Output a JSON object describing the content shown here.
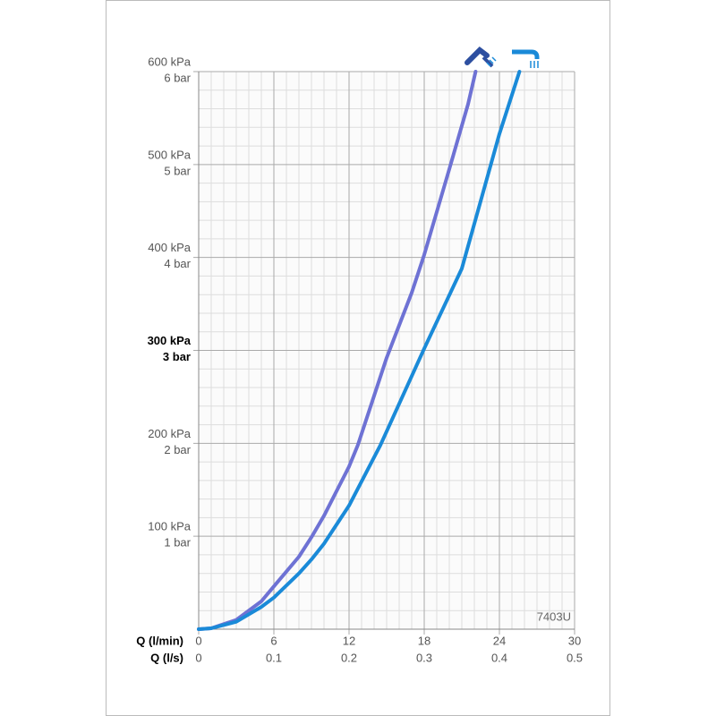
{
  "chart_data": {
    "type": "line",
    "xlabel": "Q (l/min)",
    "x2label": "Q (l/s)",
    "xlim": [
      0,
      30
    ],
    "xticks": [
      0,
      6,
      12,
      18,
      24,
      30
    ],
    "x2lim": [
      0,
      0.5
    ],
    "x2ticks": [
      0,
      0.1,
      0.2,
      0.3,
      0.4,
      0.5
    ],
    "ylim": [
      0,
      600
    ],
    "yticks": [
      {
        "value": 100,
        "label": "100 kPa"
      },
      {
        "value": 200,
        "label": "200 kPa"
      },
      {
        "value": 300,
        "label": "300 kPa"
      },
      {
        "value": 400,
        "label": "400 kPa"
      },
      {
        "value": 500,
        "label": "500 kPa"
      },
      {
        "value": 600,
        "label": "600 kPa"
      }
    ],
    "ybarticks": [
      {
        "value": 100,
        "label": "1 bar"
      },
      {
        "value": 200,
        "label": "2 bar"
      },
      {
        "value": 300,
        "label": "3 bar"
      },
      {
        "value": 400,
        "label": "4 bar"
      },
      {
        "value": 500,
        "label": "5 bar"
      },
      {
        "value": 600,
        "label": "6 bar"
      }
    ],
    "bold_ytick": 300,
    "grid": true,
    "annotation": "7403U",
    "series": [
      {
        "color": "#6e72d4",
        "x": [
          0,
          1,
          3,
          5,
          6,
          8,
          9,
          10,
          12,
          12.7,
          15,
          17,
          18,
          20,
          21.5,
          22.1
        ],
        "values": [
          0,
          1,
          10,
          30,
          46,
          78,
          99,
          122,
          175,
          198,
          292,
          362,
          403,
          495,
          565,
          600
        ]
      },
      {
        "color": "#1a8ad8",
        "x": [
          0,
          1,
          3,
          5,
          6,
          8,
          9,
          10,
          12,
          14.5,
          18,
          21,
          24,
          25.6
        ],
        "values": [
          0,
          1,
          8,
          24,
          34,
          60,
          75,
          92,
          133,
          198,
          302,
          388,
          533,
          600
        ]
      }
    ]
  }
}
